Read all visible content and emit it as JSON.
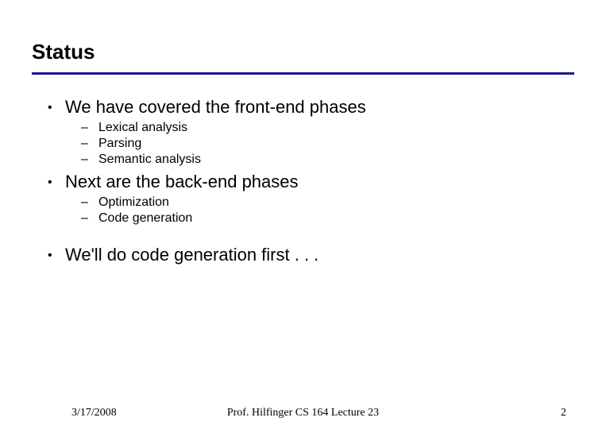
{
  "title": "Status",
  "bullets": {
    "b1_0": "We have covered the front-end phases",
    "b1_0_sub": {
      "s0": "Lexical analysis",
      "s1": "Parsing",
      "s2": "Semantic analysis"
    },
    "b1_1": "Next are the back-end phases",
    "b1_1_sub": {
      "s0": "Optimization",
      "s1": "Code generation"
    },
    "b1_2": "We'll do code generation first . . ."
  },
  "footer": {
    "date": "3/17/2008",
    "center": "Prof. Hilfinger  CS 164  Lecture 23",
    "page": "2"
  },
  "colors": {
    "rule": "#1a1a8a",
    "text": "#000000",
    "background": "#ffffff"
  },
  "fonts": {
    "body": "Comic Sans MS",
    "footer": "Times New Roman",
    "title_size_pt": 26,
    "level1_size_pt": 22,
    "level2_size_pt": 16,
    "footer_size_pt": 14
  }
}
